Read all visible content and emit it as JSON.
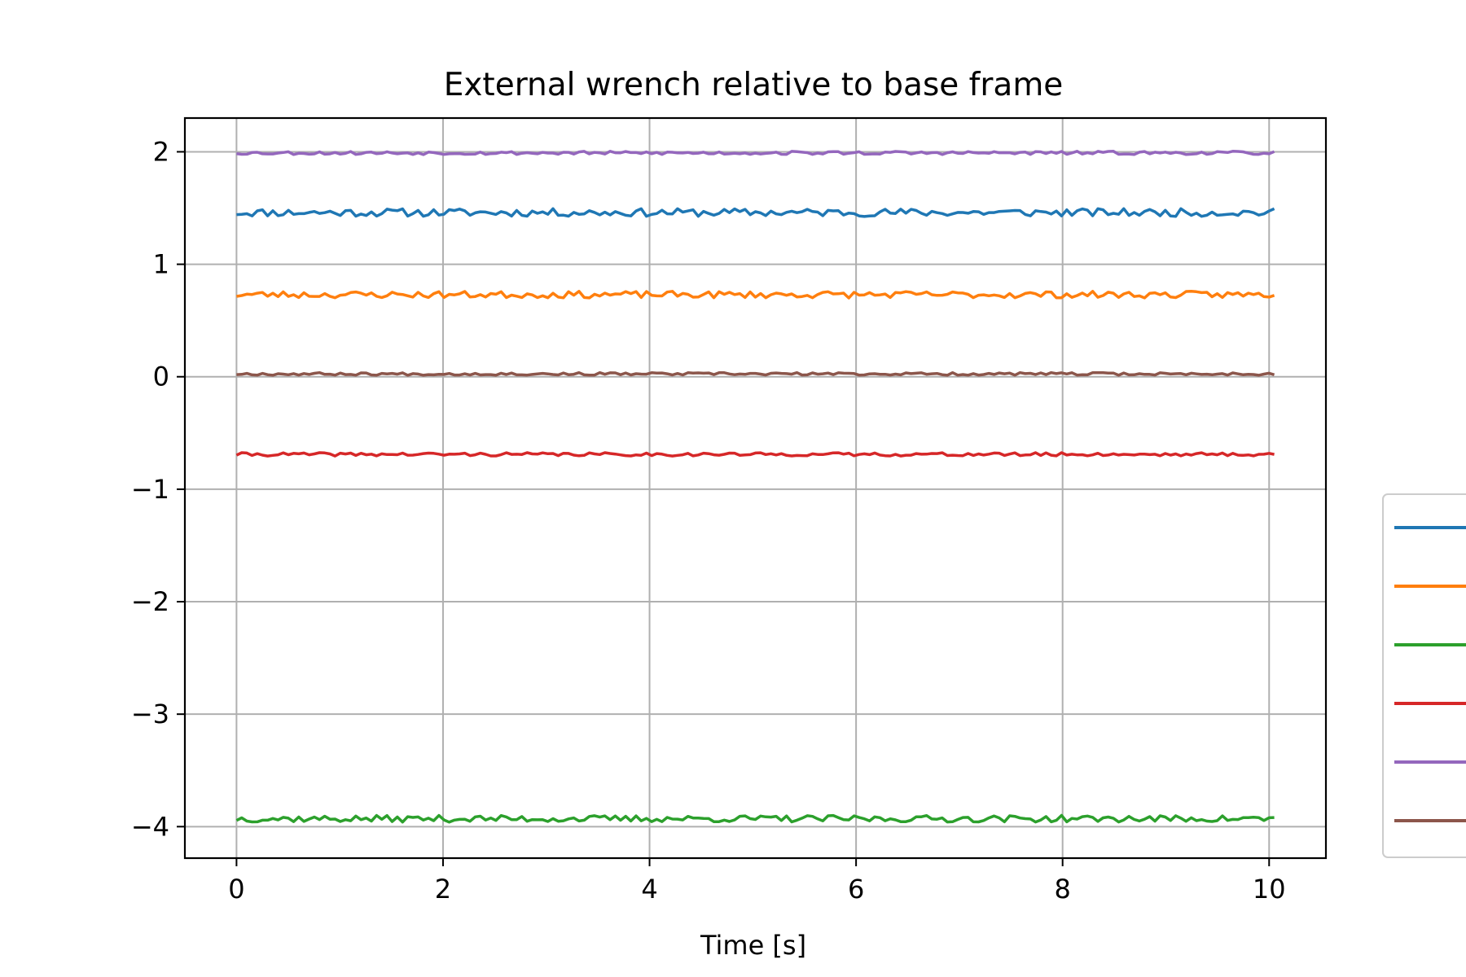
{
  "chart_data": {
    "type": "line",
    "title": "External wrench relative to base frame",
    "xlabel": "Time [s]",
    "ylabel": "",
    "xlim": [
      -0.5,
      10.55
    ],
    "ylim": [
      -4.28,
      2.3
    ],
    "xticks": [
      0,
      2,
      4,
      6,
      8,
      10
    ],
    "yticks": [
      -4,
      -3,
      -2,
      -1,
      0,
      1,
      2
    ],
    "xtick_labels": [
      "0",
      "2",
      "4",
      "6",
      "8",
      "10"
    ],
    "ytick_labels": [
      "−4",
      "−3",
      "−2",
      "−1",
      "0",
      "1",
      "2"
    ],
    "grid": true,
    "legend_position": "right, partially outside plot area",
    "x": {
      "start": 0,
      "end": 10.05,
      "samples": 201
    },
    "series": [
      {
        "color": "#1f77b4",
        "mean": 1.46,
        "noise": 0.035,
        "seed": 11
      },
      {
        "color": "#ff7f0e",
        "mean": 0.73,
        "noise": 0.03,
        "seed": 23
      },
      {
        "color": "#2ca02c",
        "mean": -3.93,
        "noise": 0.03,
        "seed": 37
      },
      {
        "color": "#d62728",
        "mean": -0.69,
        "noise": 0.015,
        "seed": 41
      },
      {
        "color": "#9467bd",
        "mean": 1.99,
        "noise": 0.015,
        "seed": 53
      },
      {
        "color": "#8c564b",
        "mean": 0.025,
        "noise": 0.012,
        "seed": 67
      }
    ]
  }
}
